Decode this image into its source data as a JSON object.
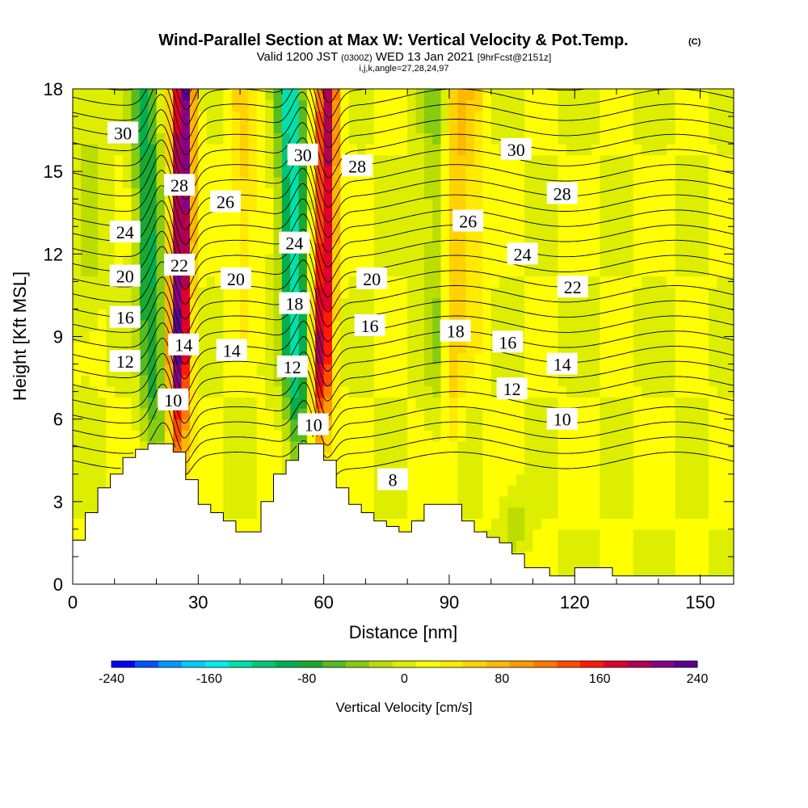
{
  "chart_data": {
    "type": "heatmap",
    "title": "Wind-Parallel Section at Max W: Vertical Velocity & Pot.Temp.",
    "title_mark": "(C)",
    "subtitle_parts": [
      "Valid 1200 JST",
      "(0300Z)",
      "WED 13 Jan 2021",
      "[9hrFcst@2151z]"
    ],
    "subtitle2": "i,j,k,angle=27,28,24,97",
    "xlabel": "Distance [nm]",
    "ylabel": "Height [Kft MSL]",
    "xlim": [
      0,
      158
    ],
    "ylim": [
      0,
      18
    ],
    "x_ticks": [
      0,
      30,
      60,
      90,
      120,
      150
    ],
    "y_ticks": [
      0,
      3,
      6,
      9,
      12,
      15,
      18
    ],
    "colorbar": {
      "label": "Vertical Velocity [cm/s]",
      "ticks": [
        -240,
        -160,
        -80,
        0,
        80,
        160,
        240
      ],
      "colors": [
        "#0000ff",
        "#0055ff",
        "#0099ff",
        "#00ccff",
        "#00eeee",
        "#00e0aa",
        "#00c878",
        "#00b050",
        "#1aa832",
        "#55bb22",
        "#88cc11",
        "#bbdd00",
        "#ddee00",
        "#ffff00",
        "#ffea00",
        "#ffd200",
        "#ffb800",
        "#ff9a00",
        "#ff7a00",
        "#ff4c00",
        "#ff1a00",
        "#e0002a",
        "#b00050",
        "#880088",
        "#5a0090"
      ]
    },
    "terrain_profile": {
      "x": [
        0,
        3,
        3,
        6,
        6,
        9,
        9,
        12,
        12,
        15,
        15,
        18,
        18,
        21,
        21,
        24,
        24,
        27,
        27,
        30,
        30,
        33,
        33,
        36,
        36,
        39,
        39,
        45,
        45,
        48,
        48,
        51,
        51,
        54,
        54,
        57,
        57,
        60,
        60,
        63,
        63,
        66,
        66,
        69,
        69,
        72,
        72,
        75,
        75,
        78,
        78,
        81,
        81,
        84,
        84,
        87,
        87,
        90,
        90,
        93,
        93,
        96,
        96,
        99,
        99,
        102,
        102,
        105,
        105,
        108,
        108,
        114,
        114,
        120,
        120,
        129,
        129,
        141,
        141,
        150,
        150,
        158
      ],
      "height_kft": [
        1.6,
        1.6,
        2.6,
        2.6,
        3.5,
        3.5,
        4.0,
        4.0,
        4.6,
        4.6,
        4.9,
        4.9,
        5.1,
        5.1,
        5.1,
        5.1,
        4.8,
        4.8,
        3.8,
        3.8,
        2.9,
        2.9,
        2.6,
        2.6,
        2.3,
        2.3,
        1.9,
        1.9,
        3.0,
        3.0,
        4.0,
        4.0,
        4.5,
        4.5,
        5.1,
        5.1,
        5.1,
        5.1,
        4.5,
        4.5,
        3.5,
        3.5,
        2.9,
        2.9,
        2.6,
        2.6,
        2.3,
        2.3,
        2.1,
        2.1,
        1.9,
        1.9,
        2.3,
        2.3,
        2.9,
        2.9,
        2.9,
        2.9,
        2.9,
        2.9,
        2.3,
        2.3,
        1.9,
        1.9,
        1.7,
        1.7,
        1.5,
        1.5,
        1.1,
        1.1,
        0.6,
        0.6,
        0.3,
        0.3,
        0.6,
        0.6,
        0.3,
        0.3,
        0.3,
        0.3,
        0.3,
        0.3
      ]
    },
    "isentrope_labels": [
      {
        "text": "30",
        "x": 12,
        "y": 16.4
      },
      {
        "text": "28",
        "x": 25.5,
        "y": 14.5
      },
      {
        "text": "26",
        "x": 36.5,
        "y": 13.9
      },
      {
        "text": "30",
        "x": 55,
        "y": 15.6
      },
      {
        "text": "28",
        "x": 68,
        "y": 15.2
      },
      {
        "text": "24",
        "x": 12.5,
        "y": 12.8
      },
      {
        "text": "22",
        "x": 25.5,
        "y": 11.6
      },
      {
        "text": "20",
        "x": 39,
        "y": 11.1
      },
      {
        "text": "24",
        "x": 53,
        "y": 12.4
      },
      {
        "text": "26",
        "x": 94.5,
        "y": 13.2
      },
      {
        "text": "30",
        "x": 106,
        "y": 15.8
      },
      {
        "text": "28",
        "x": 117,
        "y": 14.2
      },
      {
        "text": "20",
        "x": 12.5,
        "y": 11.2
      },
      {
        "text": "20",
        "x": 71.5,
        "y": 11.1
      },
      {
        "text": "24",
        "x": 107.5,
        "y": 12.0
      },
      {
        "text": "22",
        "x": 119.5,
        "y": 10.8
      },
      {
        "text": "16",
        "x": 12.5,
        "y": 9.7
      },
      {
        "text": "18",
        "x": 53,
        "y": 10.2
      },
      {
        "text": "16",
        "x": 71,
        "y": 9.4
      },
      {
        "text": "18",
        "x": 91.5,
        "y": 9.2
      },
      {
        "text": "16",
        "x": 104,
        "y": 8.8
      },
      {
        "text": "14",
        "x": 117,
        "y": 8.0
      },
      {
        "text": "12",
        "x": 12.5,
        "y": 8.1
      },
      {
        "text": "14",
        "x": 26.5,
        "y": 8.7
      },
      {
        "text": "14",
        "x": 38,
        "y": 8.5
      },
      {
        "text": "12",
        "x": 52.5,
        "y": 7.9
      },
      {
        "text": "12",
        "x": 105,
        "y": 7.1
      },
      {
        "text": "10",
        "x": 117,
        "y": 6.0
      },
      {
        "text": "10",
        "x": 24,
        "y": 6.7
      },
      {
        "text": "10",
        "x": 57.5,
        "y": 5.8
      },
      {
        "text": "8",
        "x": 76.5,
        "y": 3.8
      }
    ],
    "isentrope_levels_K": [
      8,
      10,
      12,
      14,
      16,
      18,
      20,
      22,
      24,
      26,
      28,
      30
    ],
    "updraft_bands": [
      {
        "x_bottom": 25,
        "x_top": 26.5,
        "w_cm_s": 220
      },
      {
        "x_bottom": 59,
        "x_top": 61,
        "w_cm_s": 180
      },
      {
        "x_bottom": 90,
        "x_top": 92,
        "w_cm_s": 60
      }
    ],
    "downdraft_bands": [
      {
        "x_bottom": 20,
        "x_top": 17,
        "w_cm_s": -100
      },
      {
        "x_bottom": 54,
        "x_top": 52,
        "w_cm_s": -150
      },
      {
        "x_bottom": 88,
        "x_top": 86,
        "w_cm_s": -40
      }
    ]
  }
}
